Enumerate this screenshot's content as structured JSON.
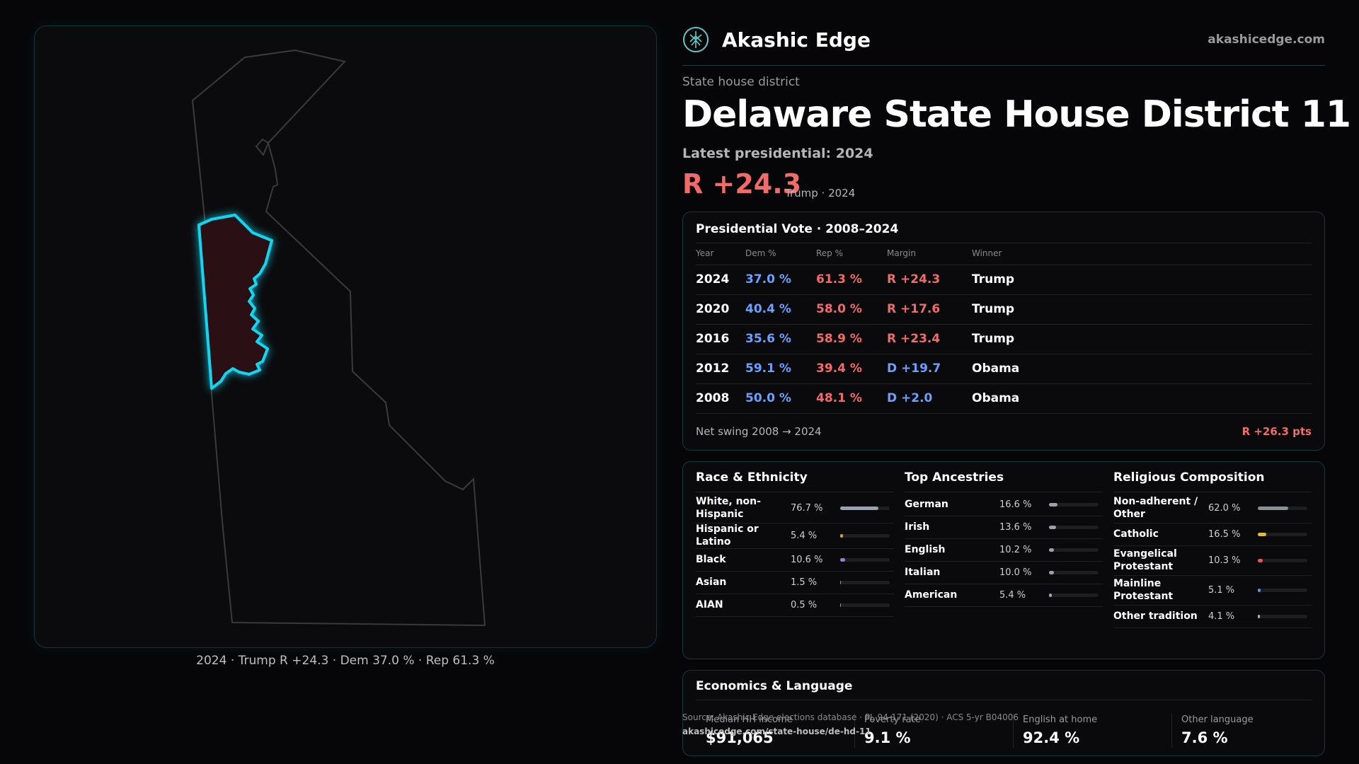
{
  "brand": {
    "name": "Akashic Edge",
    "url": "akashicedge.com",
    "logo_icon": "tree-emblem-icon"
  },
  "eyebrow": "State house district",
  "title": "Delaware State House District 11",
  "latest_label": "Latest presidential: 2024",
  "latest_margin": "R +24.3",
  "latest_sub": "Trump · 2024",
  "map": {
    "caption": "2024 · Trump R +24.3 · Dem 37.0 % · Rep 61.3 %",
    "district_fill": "#2a0f14",
    "district_stroke": "#14d4f0",
    "state_stroke": "#3a3a3a"
  },
  "presidential": {
    "title": "Presidential Vote · 2008–2024",
    "columns": {
      "year": "Year",
      "dem": "Dem %",
      "rep": "Rep %",
      "margin": "Margin",
      "winner": "Winner"
    },
    "rows": [
      {
        "year": "2024",
        "dem": "37.0 %",
        "rep": "61.3 %",
        "margin": "R +24.3",
        "winner": "Trump"
      },
      {
        "year": "2020",
        "dem": "40.4 %",
        "rep": "58.0 %",
        "margin": "R +17.6",
        "winner": "Trump"
      },
      {
        "year": "2016",
        "dem": "35.6 %",
        "rep": "58.9 %",
        "margin": "R +23.4",
        "winner": "Trump"
      },
      {
        "year": "2012",
        "dem": "59.1 %",
        "rep": "39.4 %",
        "margin": "D +19.7",
        "winner": "Obama"
      },
      {
        "year": "2008",
        "dem": "50.0 %",
        "rep": "48.1 %",
        "margin": "D +2.0",
        "winner": "Obama"
      }
    ],
    "swing_label": "Net swing 2008 → 2024",
    "swing_value": "R +26.3 pts"
  },
  "race": {
    "title": "Race & Ethnicity",
    "items": [
      {
        "label": "White, non-Hispanic",
        "pct": "76.7 %",
        "value": 76.7,
        "color": "#9aa3ad"
      },
      {
        "label": "Hispanic or Latino",
        "pct": "5.4 %",
        "value": 5.4,
        "color": "#e0a030"
      },
      {
        "label": "Black",
        "pct": "10.6 %",
        "value": 10.6,
        "color": "#9a7ce8"
      },
      {
        "label": "Asian",
        "pct": "1.5 %",
        "value": 1.5,
        "color": "#3bc08a"
      },
      {
        "label": "AIAN",
        "pct": "0.5 %",
        "value": 0.5,
        "color": "#d07a50"
      }
    ]
  },
  "ancestry": {
    "title": "Top Ancestries",
    "items": [
      {
        "label": "German",
        "pct": "16.6 %",
        "value": 16.6,
        "color": "#9aa3ad"
      },
      {
        "label": "Irish",
        "pct": "13.6 %",
        "value": 13.6,
        "color": "#9aa3ad"
      },
      {
        "label": "English",
        "pct": "10.2 %",
        "value": 10.2,
        "color": "#9aa3ad"
      },
      {
        "label": "Italian",
        "pct": "10.0 %",
        "value": 10.0,
        "color": "#9aa3ad"
      },
      {
        "label": "American",
        "pct": "5.4 %",
        "value": 5.4,
        "color": "#9aa3ad"
      }
    ]
  },
  "religion": {
    "title": "Religious Composition",
    "items": [
      {
        "label": "Non-adherent / Other",
        "pct": "62.0 %",
        "value": 62.0,
        "color": "#8a8f96"
      },
      {
        "label": "Catholic",
        "pct": "16.5 %",
        "value": 16.5,
        "color": "#e8b830"
      },
      {
        "label": "Evangelical Protestant",
        "pct": "10.3 %",
        "value": 10.3,
        "color": "#e05a5a"
      },
      {
        "label": "Mainline Protestant",
        "pct": "5.1 %",
        "value": 5.1,
        "color": "#5a8fe0"
      },
      {
        "label": "Other tradition",
        "pct": "4.1 %",
        "value": 4.1,
        "color": "#b0b0b0"
      }
    ]
  },
  "economics": {
    "title": "Economics & Language",
    "stats": [
      {
        "label": "Median HH income",
        "value": "$91,065"
      },
      {
        "label": "Poverty rate",
        "value": "9.1 %"
      },
      {
        "label": "English at home",
        "value": "92.4 %"
      },
      {
        "label": "Other language",
        "value": "7.6 %"
      }
    ]
  },
  "source": {
    "line": "Source: Akashic Edge elections database · PL 94-171 (2020) · ACS 5-yr B04006",
    "url": "akashicedge.com/state-house/de-hd-11"
  }
}
